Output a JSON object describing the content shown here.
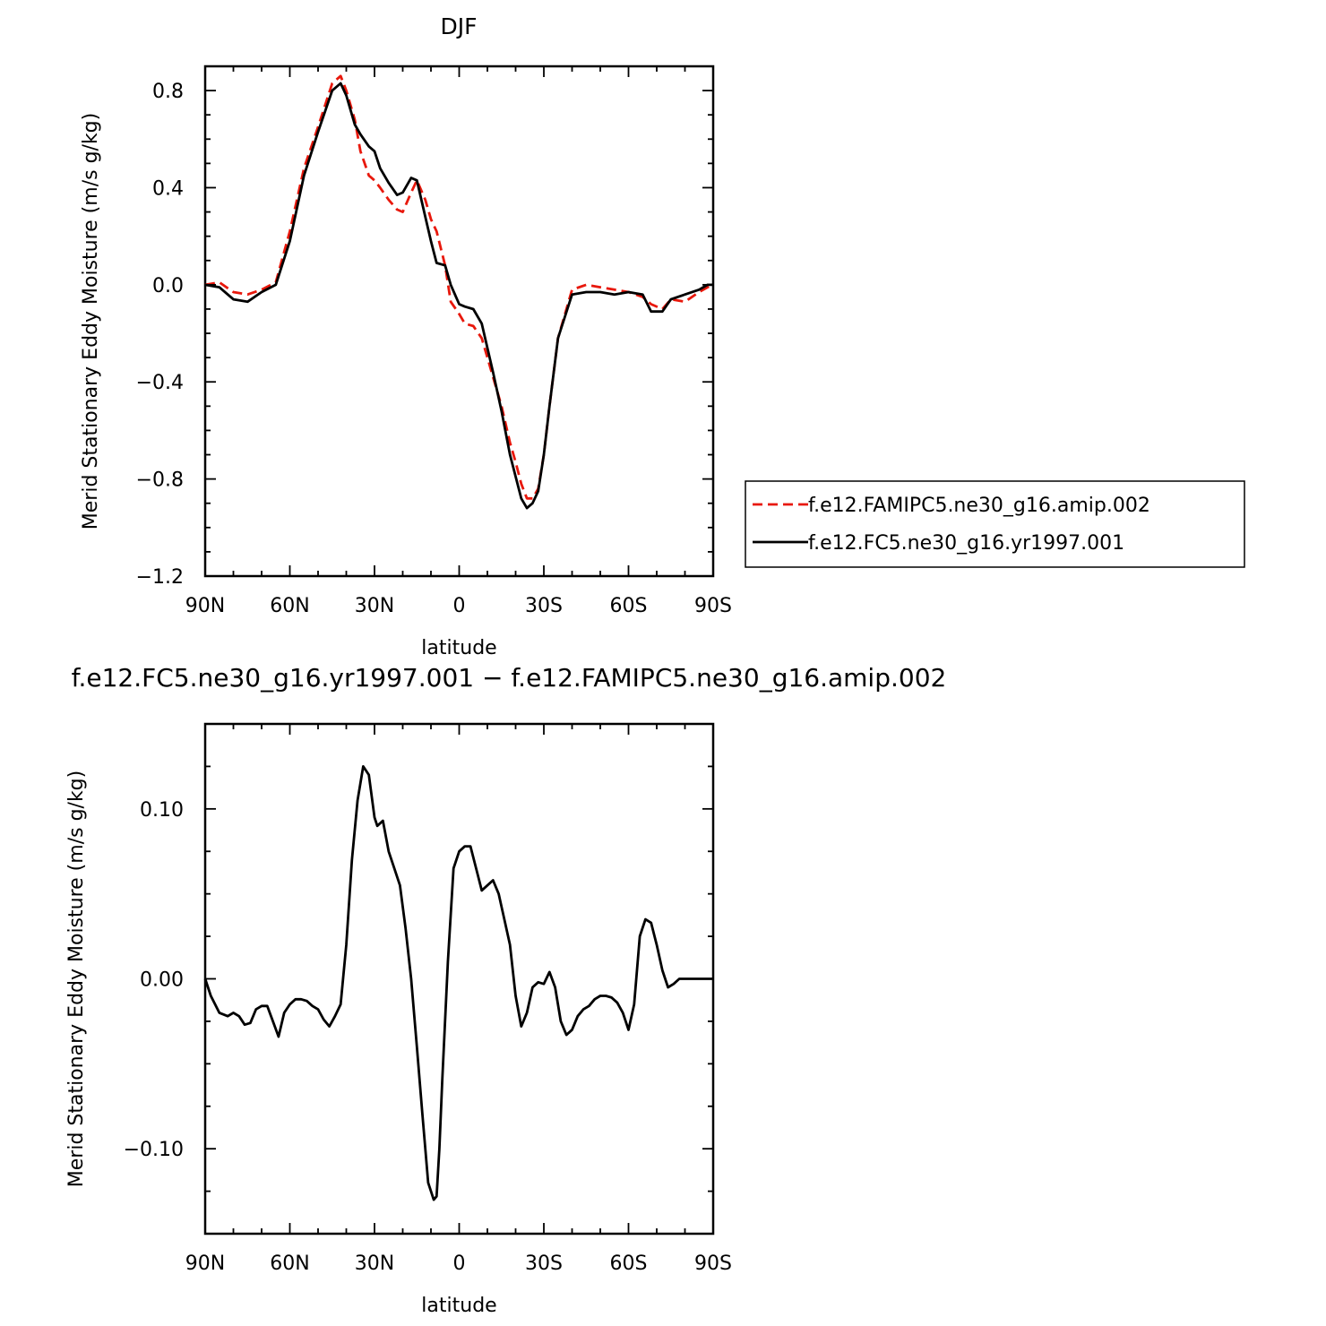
{
  "chart_data": [
    {
      "type": "line",
      "title": "DJF",
      "xlabel": "latitude",
      "ylabel": "Merid Stationary Eddy Moisture (m/s g/kg)",
      "xlim": [
        -90,
        90
      ],
      "ylim": [
        -1.2,
        0.9
      ],
      "x_ticks": [
        -90,
        -60,
        -30,
        0,
        30,
        60,
        90
      ],
      "x_tick_labels": [
        "90N",
        "60N",
        "30N",
        "0",
        "30S",
        "60S",
        "90S"
      ],
      "y_ticks": [
        0.8,
        0.4,
        0.0,
        -0.4,
        -0.8,
        -1.2
      ],
      "y_tick_labels": [
        "0.8",
        "0.4",
        "0.0",
        "−0.4",
        "−0.8",
        "−1.2"
      ],
      "legend_position": "right",
      "series": [
        {
          "name": "f.e12.FAMIPC5.ne30_g16.amip.002",
          "color": "#e8180c",
          "dash": "dashed",
          "x": [
            -90,
            -85,
            -80,
            -75,
            -70,
            -65,
            -60,
            -55,
            -50,
            -45,
            -42,
            -40,
            -37,
            -35,
            -32,
            -30,
            -28,
            -25,
            -22,
            -20,
            -17,
            -15,
            -12,
            -10,
            -8,
            -5,
            -3,
            0,
            2,
            5,
            8,
            10,
            12,
            15,
            18,
            20,
            22,
            24,
            26,
            28,
            30,
            32,
            35,
            40,
            45,
            50,
            55,
            60,
            65,
            68,
            72,
            75,
            80,
            85,
            88,
            90
          ],
          "y": [
            0.0,
            0.01,
            -0.03,
            -0.04,
            -0.02,
            0.01,
            0.22,
            0.48,
            0.65,
            0.83,
            0.86,
            0.8,
            0.68,
            0.55,
            0.45,
            0.43,
            0.4,
            0.35,
            0.31,
            0.3,
            0.38,
            0.43,
            0.35,
            0.27,
            0.22,
            0.08,
            -0.07,
            -0.12,
            -0.16,
            -0.17,
            -0.22,
            -0.3,
            -0.38,
            -0.5,
            -0.65,
            -0.73,
            -0.82,
            -0.88,
            -0.88,
            -0.84,
            -0.7,
            -0.5,
            -0.22,
            -0.02,
            0.0,
            -0.01,
            -0.02,
            -0.03,
            -0.05,
            -0.08,
            -0.1,
            -0.06,
            -0.07,
            -0.03,
            -0.01,
            0.0
          ]
        },
        {
          "name": "f.e12.FC5.ne30_g16.yr1997.001",
          "color": "#000000",
          "dash": "solid",
          "x": [
            -90,
            -85,
            -80,
            -75,
            -70,
            -65,
            -60,
            -55,
            -50,
            -45,
            -42,
            -40,
            -37,
            -35,
            -32,
            -30,
            -28,
            -25,
            -22,
            -20,
            -17,
            -15,
            -12,
            -10,
            -8,
            -5,
            -3,
            0,
            2,
            5,
            8,
            10,
            12,
            15,
            18,
            20,
            22,
            24,
            26,
            28,
            30,
            32,
            35,
            40,
            45,
            50,
            55,
            60,
            65,
            68,
            72,
            75,
            80,
            85,
            88,
            90
          ],
          "y": [
            0.0,
            -0.01,
            -0.06,
            -0.07,
            -0.03,
            0.0,
            0.18,
            0.45,
            0.63,
            0.8,
            0.83,
            0.78,
            0.66,
            0.62,
            0.57,
            0.55,
            0.48,
            0.42,
            0.37,
            0.38,
            0.44,
            0.43,
            0.28,
            0.18,
            0.09,
            0.08,
            0.0,
            -0.08,
            -0.09,
            -0.1,
            -0.16,
            -0.26,
            -0.36,
            -0.52,
            -0.7,
            -0.79,
            -0.88,
            -0.92,
            -0.9,
            -0.85,
            -0.7,
            -0.5,
            -0.22,
            -0.04,
            -0.03,
            -0.03,
            -0.04,
            -0.03,
            -0.04,
            -0.11,
            -0.11,
            -0.06,
            -0.04,
            -0.02,
            0.0,
            0.0
          ]
        }
      ]
    },
    {
      "type": "line",
      "title": "f.e12.FC5.ne30_g16.yr1997.001 − f.e12.FAMIPC5.ne30_g16.amip.002",
      "xlabel": "latitude",
      "ylabel": "Merid Stationary Eddy Moisture (m/s g/kg)",
      "xlim": [
        -90,
        90
      ],
      "ylim": [
        -0.15,
        0.15
      ],
      "x_ticks": [
        -90,
        -60,
        -30,
        0,
        30,
        60,
        90
      ],
      "x_tick_labels": [
        "90N",
        "60N",
        "30N",
        "0",
        "30S",
        "60S",
        "90S"
      ],
      "y_ticks": [
        0.1,
        0.0,
        -0.1
      ],
      "y_tick_labels": [
        "0.10",
        "0.00",
        "−0.10"
      ],
      "series": [
        {
          "color": "#000000",
          "dash": "solid",
          "x": [
            -90,
            -88,
            -85,
            -82,
            -80,
            -78,
            -76,
            -74,
            -72,
            -70,
            -68,
            -66,
            -64,
            -62,
            -60,
            -58,
            -56,
            -54,
            -52,
            -50,
            -48,
            -46,
            -44,
            -42,
            -40,
            -38,
            -36,
            -34,
            -32,
            -30,
            -29,
            -27,
            -25,
            -23,
            -21,
            -19,
            -17,
            -15,
            -13,
            -11,
            -9,
            -8,
            -7,
            -6,
            -4,
            -2,
            0,
            2,
            4,
            6,
            8,
            10,
            12,
            14,
            16,
            18,
            20,
            22,
            24,
            26,
            28,
            30,
            32,
            34,
            36,
            38,
            40,
            42,
            44,
            46,
            48,
            50,
            52,
            54,
            56,
            58,
            60,
            62,
            64,
            66,
            68,
            70,
            72,
            74,
            76,
            78,
            80,
            82,
            84,
            86,
            88,
            90
          ],
          "y": [
            0.0,
            -0.01,
            -0.02,
            -0.022,
            -0.02,
            -0.022,
            -0.027,
            -0.026,
            -0.018,
            -0.016,
            -0.016,
            -0.025,
            -0.034,
            -0.02,
            -0.015,
            -0.012,
            -0.012,
            -0.013,
            -0.016,
            -0.018,
            -0.024,
            -0.028,
            -0.022,
            -0.015,
            0.02,
            0.07,
            0.105,
            0.125,
            0.12,
            0.095,
            0.09,
            0.093,
            0.075,
            0.065,
            0.055,
            0.03,
            0.0,
            -0.04,
            -0.08,
            -0.12,
            -0.13,
            -0.128,
            -0.1,
            -0.06,
            0.01,
            0.065,
            0.075,
            0.078,
            0.078,
            0.065,
            0.052,
            0.055,
            0.058,
            0.05,
            0.035,
            0.02,
            -0.01,
            -0.028,
            -0.02,
            -0.005,
            -0.002,
            -0.003,
            0.004,
            -0.005,
            -0.025,
            -0.033,
            -0.03,
            -0.022,
            -0.018,
            -0.016,
            -0.012,
            -0.01,
            -0.01,
            -0.011,
            -0.014,
            -0.02,
            -0.03,
            -0.015,
            0.025,
            0.035,
            0.033,
            0.02,
            0.005,
            -0.005,
            -0.003,
            0.0,
            0.0,
            0.0,
            0.0,
            0.0,
            0.0,
            0.0
          ]
        }
      ]
    }
  ]
}
